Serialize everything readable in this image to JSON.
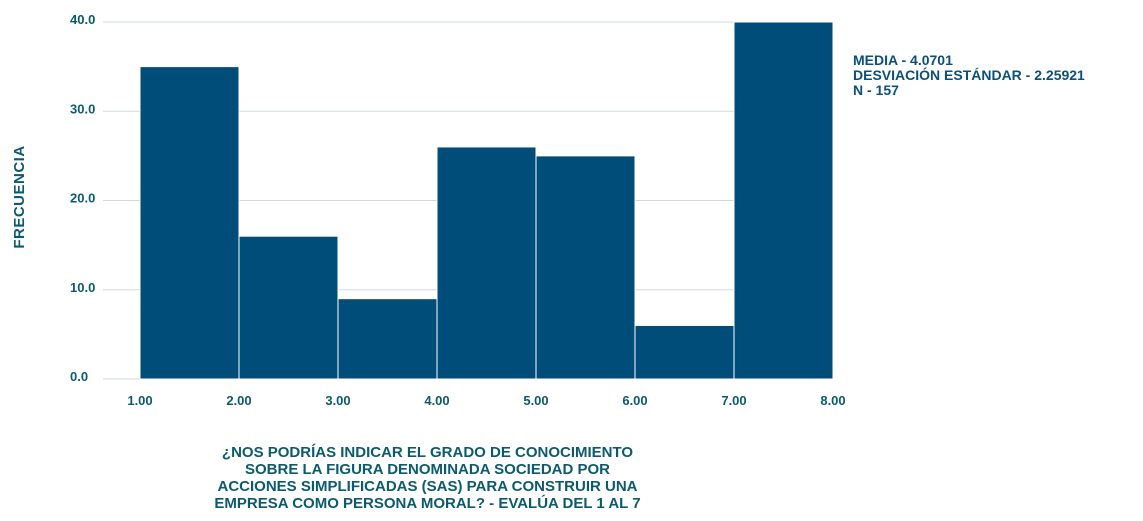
{
  "chart_data": {
    "type": "bar",
    "title": "",
    "ylabel": "FRECUENCIA",
    "xlabel_lines": [
      "¿NOS PODRÍAS INDICAR EL GRADO DE CONOCIMIENTO",
      "SOBRE LA FIGURA DENOMINADA SOCIEDAD POR",
      "ACCIONES SIMPLIFICADAS (SAS) PARA CONSTRUIR UNA",
      "EMPRESA COMO PERSONA MORAL? - EVALÚA DEL 1 AL 7"
    ],
    "bins": [
      {
        "x0": 1,
        "x1": 2,
        "value": 35
      },
      {
        "x0": 2,
        "x1": 3,
        "value": 16
      },
      {
        "x0": 3,
        "x1": 4,
        "value": 9
      },
      {
        "x0": 4,
        "x1": 5,
        "value": 26
      },
      {
        "x0": 5,
        "x1": 6,
        "value": 25
      },
      {
        "x0": 6,
        "x1": 7,
        "value": 6
      },
      {
        "x0": 7,
        "x1": 8,
        "value": 40
      }
    ],
    "xticks": [
      "1.00",
      "2.00",
      "3.00",
      "4.00",
      "5.00",
      "6.00",
      "7.00",
      "8.00"
    ],
    "yticks": [
      "0.0",
      "10.0",
      "20.0",
      "30.0",
      "40.0"
    ],
    "ylim": [
      0,
      40
    ],
    "grid": true,
    "colors": {
      "bar": "#004d7a",
      "grid": "#cfd8dc",
      "text": "#0b5a70"
    }
  },
  "stats": {
    "media": "MEDIA - 4.0701",
    "desviacion": "DESVIACIÓN ESTÁNDAR - 2.25921",
    "n": "N - 157"
  }
}
